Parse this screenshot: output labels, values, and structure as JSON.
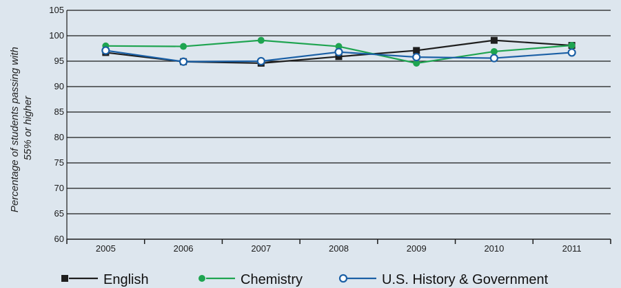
{
  "chart_data": {
    "type": "line",
    "x": [
      "2005",
      "2006",
      "2007",
      "2008",
      "2009",
      "2010",
      "2011"
    ],
    "ylabel_lines": [
      "Percentage of students passing with",
      "55% or higher"
    ],
    "ylim": [
      60,
      105
    ],
    "yticks": [
      60,
      65,
      70,
      75,
      80,
      85,
      90,
      95,
      100,
      105
    ],
    "grid": true,
    "legend_position": "bottom",
    "series": [
      {
        "name": "English",
        "marker": "square",
        "color": "#1e1e1e",
        "values": [
          96.7,
          94.9,
          94.6,
          95.9,
          97.1,
          99.1,
          98.1
        ]
      },
      {
        "name": "Chemistry",
        "marker": "filled-circle",
        "color": "#1ea450",
        "values": [
          98.0,
          97.9,
          99.1,
          97.9,
          94.6,
          96.9,
          98.1
        ]
      },
      {
        "name": "U.S. History & Government",
        "marker": "open-circle",
        "color": "#1a5fa5",
        "values": [
          97.1,
          94.9,
          95.0,
          96.8,
          95.8,
          95.6,
          96.7
        ]
      }
    ]
  }
}
